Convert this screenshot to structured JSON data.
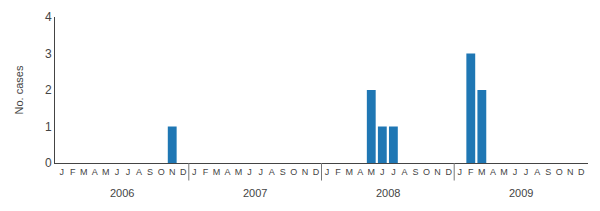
{
  "chart_data": {
    "type": "bar",
    "ylabel": "No. cases",
    "categories": [
      "J",
      "F",
      "M",
      "A",
      "M",
      "J",
      "J",
      "A",
      "S",
      "O",
      "N",
      "D",
      "J",
      "F",
      "M",
      "A",
      "M",
      "J",
      "J",
      "A",
      "S",
      "O",
      "N",
      "D",
      "J",
      "F",
      "M",
      "A",
      "M",
      "J",
      "J",
      "A",
      "S",
      "O",
      "N",
      "D",
      "J",
      "F",
      "M",
      "A",
      "M",
      "J",
      "J",
      "A",
      "S",
      "O",
      "N",
      "D"
    ],
    "values": [
      0,
      0,
      0,
      0,
      0,
      0,
      0,
      0,
      0,
      0,
      1,
      0,
      0,
      0,
      0,
      0,
      0,
      0,
      0,
      0,
      0,
      0,
      0,
      0,
      0,
      0,
      0,
      0,
      2,
      1,
      1,
      0,
      0,
      0,
      0,
      0,
      0,
      3,
      2,
      0,
      0,
      0,
      0,
      0,
      0,
      0,
      0,
      0
    ],
    "annotations": [
      "2006",
      "2007",
      "2008",
      "2009"
    ],
    "ylim": [
      0,
      4
    ],
    "yticks": [
      0,
      1,
      2,
      3,
      4
    ],
    "grid": false
  }
}
